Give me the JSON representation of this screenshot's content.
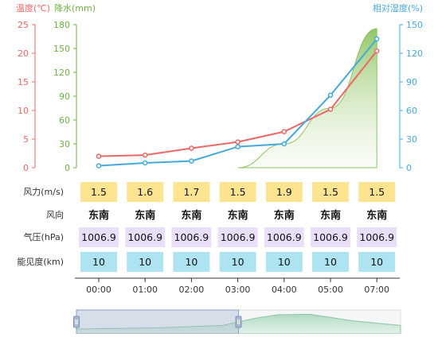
{
  "chart_data": {
    "type": "line",
    "times": [
      "00:00",
      "01:00",
      "02:00",
      "03:00",
      "04:00",
      "05:00",
      "07:00"
    ],
    "axes": {
      "temperature": {
        "label": "温度(℃)",
        "min": 0,
        "max": 25,
        "ticks": [
          "0",
          "5",
          "10",
          "15",
          "20",
          "25"
        ],
        "color": "#ee6666"
      },
      "precipitation": {
        "label": "降水(mm)",
        "min": 0,
        "max": 180,
        "ticks": [
          "0",
          "30",
          "60",
          "90",
          "120",
          "150",
          "180"
        ],
        "color": "#6cb33e"
      },
      "humidity": {
        "label": "相对湿度(%)",
        "min": 0,
        "max": 150,
        "ticks": [
          "0",
          "30",
          "60",
          "90",
          "120",
          "150"
        ],
        "color": "#44aadd"
      }
    },
    "series": {
      "temperature": [
        2.0,
        2.2,
        3.4,
        4.5,
        6.3,
        10.2,
        20.4
      ],
      "humidity": [
        2,
        5,
        7,
        22,
        25,
        76,
        135
      ],
      "precipitation": [
        0,
        0,
        0,
        0,
        30,
        75,
        175
      ]
    },
    "grid": false
  },
  "table": {
    "rows": [
      {
        "label": "风力(m/s)",
        "style": "wind-speed",
        "values": [
          "1.5",
          "1.6",
          "1.7",
          "1.5",
          "1.9",
          "1.5",
          "1.5"
        ]
      },
      {
        "label": "风向",
        "style": "wind-direction",
        "values": [
          "东南",
          "东南",
          "东南",
          "东南",
          "东南",
          "东南",
          "东南"
        ]
      },
      {
        "label": "气压(hPa)",
        "style": "pressure",
        "values": [
          "1006.9",
          "1006.9",
          "1006.9",
          "1006.9",
          "1006.9",
          "1006.9",
          "1006.9"
        ]
      },
      {
        "label": "能见度(km)",
        "style": "visibility",
        "values": [
          "10",
          "10",
          "10",
          "10",
          "10",
          "10",
          "10"
        ]
      }
    ]
  },
  "zoom": {
    "start_fraction": 0.0,
    "end_fraction": 0.5
  },
  "colors": {
    "temperature": "#ee6666",
    "precipitation": "#6cb33e",
    "humidity": "#44aadd",
    "wind_cell": "#fde490",
    "pressure_cell": "#eadffa",
    "visibility_cell": "#aee3f2"
  }
}
